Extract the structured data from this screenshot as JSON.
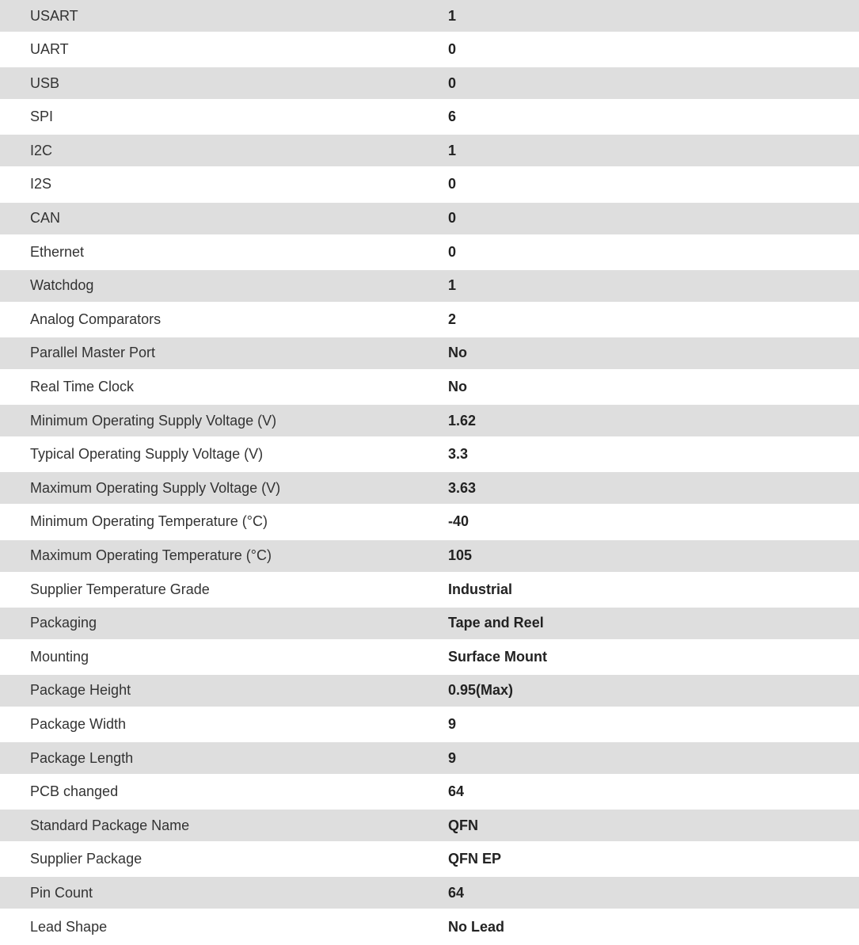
{
  "specs": [
    {
      "label": "USART",
      "value": "1"
    },
    {
      "label": "UART",
      "value": "0"
    },
    {
      "label": "USB",
      "value": "0"
    },
    {
      "label": "SPI",
      "value": "6"
    },
    {
      "label": "I2C",
      "value": "1"
    },
    {
      "label": "I2S",
      "value": "0"
    },
    {
      "label": "CAN",
      "value": "0"
    },
    {
      "label": "Ethernet",
      "value": "0"
    },
    {
      "label": "Watchdog",
      "value": "1"
    },
    {
      "label": "Analog Comparators",
      "value": "2"
    },
    {
      "label": "Parallel Master Port",
      "value": "No"
    },
    {
      "label": "Real Time Clock",
      "value": "No"
    },
    {
      "label": "Minimum Operating Supply Voltage (V)",
      "value": "1.62"
    },
    {
      "label": "Typical Operating Supply Voltage (V)",
      "value": "3.3"
    },
    {
      "label": "Maximum Operating Supply Voltage (V)",
      "value": "3.63"
    },
    {
      "label": "Minimum Operating Temperature (°C)",
      "value": "-40"
    },
    {
      "label": "Maximum Operating Temperature (°C)",
      "value": "105"
    },
    {
      "label": "Supplier Temperature Grade",
      "value": "Industrial"
    },
    {
      "label": "Packaging",
      "value": "Tape and Reel"
    },
    {
      "label": "Mounting",
      "value": "Surface Mount"
    },
    {
      "label": "Package Height",
      "value": "0.95(Max)"
    },
    {
      "label": "Package Width",
      "value": "9"
    },
    {
      "label": "Package Length",
      "value": "9"
    },
    {
      "label": "PCB changed",
      "value": "64"
    },
    {
      "label": "Standard Package Name",
      "value": "QFN"
    },
    {
      "label": "Supplier Package",
      "value": "QFN EP"
    },
    {
      "label": "Pin Count",
      "value": "64"
    },
    {
      "label": "Lead Shape",
      "value": "No Lead"
    }
  ],
  "colors": {
    "stripe": "#dedede",
    "background": "#ffffff"
  }
}
